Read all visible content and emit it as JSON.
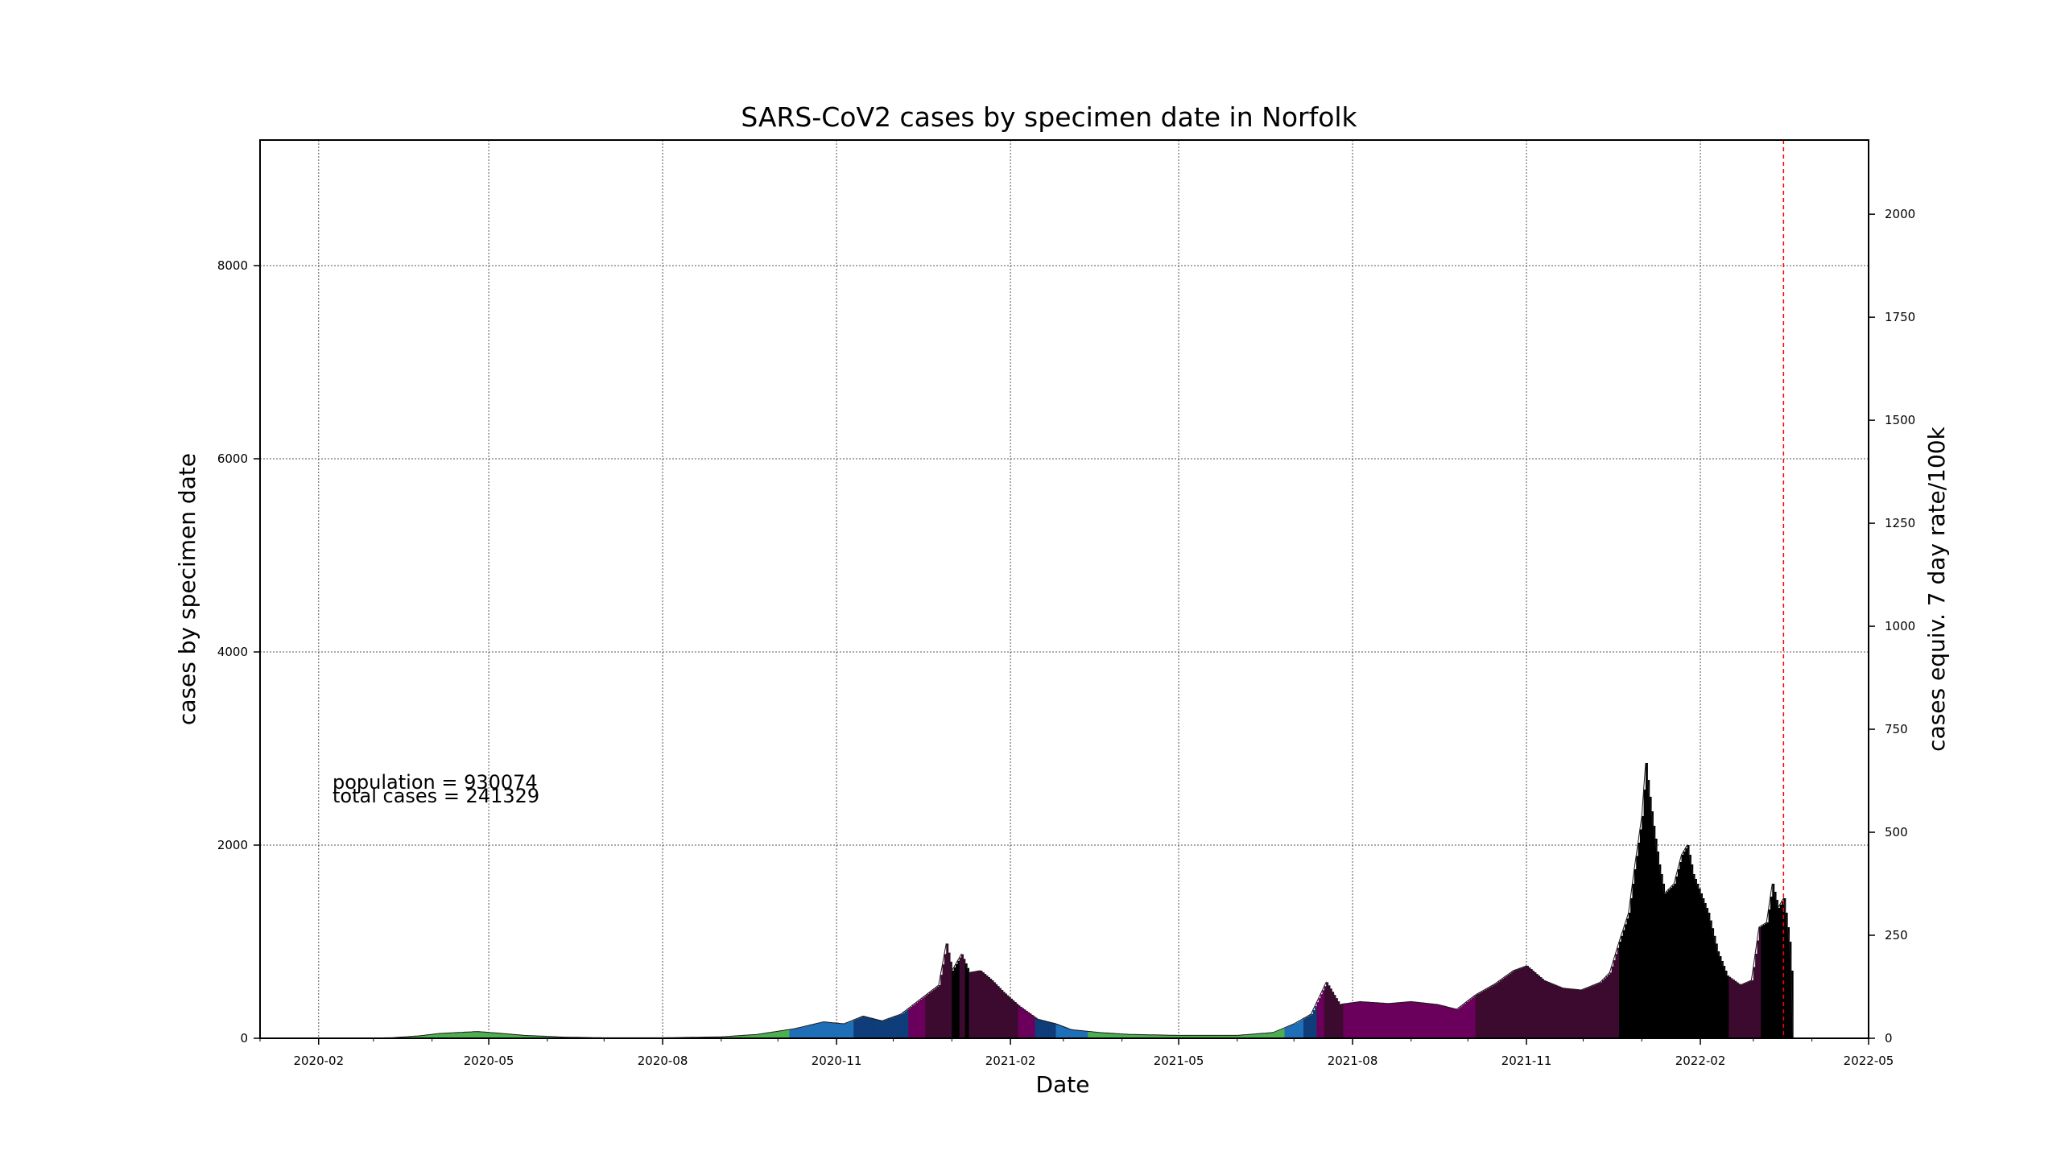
{
  "chart_data": {
    "type": "area",
    "title": "SARS-CoV2 cases by specimen date in Norfolk",
    "xlabel": "Date",
    "ylabel": "cases by specimen date",
    "ylabel_right": "cases equiv. 7 day rate/100k",
    "xlim": [
      "2020-01-01",
      "2022-05-01"
    ],
    "ylim": [
      0,
      9300
    ],
    "ylim_right": [
      0,
      2180
    ],
    "grid": true,
    "x_ticks": [
      "2020-02",
      "2020-05",
      "2020-08",
      "2020-11",
      "2021-02",
      "2021-05",
      "2021-08",
      "2021-11",
      "2022-02",
      "2022-05"
    ],
    "y_ticks": [
      0,
      2000,
      4000,
      6000,
      8000
    ],
    "y_ticks_right": [
      0,
      250,
      500,
      750,
      1000,
      1250,
      1500,
      1750,
      2000
    ],
    "vline_date": "2022-03-17",
    "vline_color": "#ff0000",
    "annotations": {
      "population": "population = 930074",
      "total_cases": "total cases = 241329"
    },
    "rate_colors": [
      "#4caf50",
      "#1e6fb8",
      "#0f3d7a",
      "#6b005c",
      "#3c0a2e",
      "#000000"
    ],
    "points": [
      [
        "2020-01-31",
        0
      ],
      [
        "2020-03-10",
        5
      ],
      [
        "2020-03-25",
        25
      ],
      [
        "2020-04-05",
        50
      ],
      [
        "2020-04-15",
        60
      ],
      [
        "2020-04-25",
        70
      ],
      [
        "2020-05-05",
        55
      ],
      [
        "2020-05-20",
        30
      ],
      [
        "2020-06-10",
        12
      ],
      [
        "2020-07-01",
        5
      ],
      [
        "2020-08-01",
        5
      ],
      [
        "2020-09-01",
        15
      ],
      [
        "2020-09-20",
        40
      ],
      [
        "2020-10-10",
        100
      ],
      [
        "2020-10-25",
        170
      ],
      [
        "2020-11-05",
        150
      ],
      [
        "2020-11-15",
        230
      ],
      [
        "2020-11-25",
        180
      ],
      [
        "2020-12-05",
        250
      ],
      [
        "2020-12-15",
        400
      ],
      [
        "2020-12-25",
        550
      ],
      [
        "2020-12-29",
        980
      ],
      [
        "2021-01-01",
        700
      ],
      [
        "2021-01-06",
        870
      ],
      [
        "2021-01-10",
        680
      ],
      [
        "2021-01-16",
        700
      ],
      [
        "2021-01-22",
        600
      ],
      [
        "2021-01-28",
        480
      ],
      [
        "2021-02-05",
        340
      ],
      [
        "2021-02-15",
        200
      ],
      [
        "2021-02-25",
        150
      ],
      [
        "2021-03-05",
        90
      ],
      [
        "2021-03-20",
        60
      ],
      [
        "2021-04-05",
        40
      ],
      [
        "2021-05-01",
        30
      ],
      [
        "2021-06-01",
        30
      ],
      [
        "2021-06-20",
        60
      ],
      [
        "2021-07-01",
        150
      ],
      [
        "2021-07-10",
        250
      ],
      [
        "2021-07-18",
        580
      ],
      [
        "2021-07-25",
        350
      ],
      [
        "2021-08-05",
        380
      ],
      [
        "2021-08-20",
        360
      ],
      [
        "2021-09-01",
        380
      ],
      [
        "2021-09-15",
        350
      ],
      [
        "2021-09-25",
        300
      ],
      [
        "2021-10-05",
        450
      ],
      [
        "2021-10-15",
        560
      ],
      [
        "2021-10-25",
        700
      ],
      [
        "2021-11-01",
        750
      ],
      [
        "2021-11-10",
        600
      ],
      [
        "2021-11-20",
        520
      ],
      [
        "2021-11-30",
        500
      ],
      [
        "2021-12-10",
        580
      ],
      [
        "2021-12-15",
        680
      ],
      [
        "2021-12-20",
        1000
      ],
      [
        "2021-12-25",
        1300
      ],
      [
        "2021-12-28",
        1750
      ],
      [
        "2022-01-01",
        2300
      ],
      [
        "2022-01-03",
        2850
      ],
      [
        "2022-01-05",
        2500
      ],
      [
        "2022-01-07",
        2200
      ],
      [
        "2022-01-10",
        1800
      ],
      [
        "2022-01-13",
        1500
      ],
      [
        "2022-01-18",
        1600
      ],
      [
        "2022-01-22",
        1900
      ],
      [
        "2022-01-25",
        2000
      ],
      [
        "2022-01-28",
        1700
      ],
      [
        "2022-02-01",
        1500
      ],
      [
        "2022-02-05",
        1300
      ],
      [
        "2022-02-10",
        900
      ],
      [
        "2022-02-15",
        650
      ],
      [
        "2022-02-22",
        550
      ],
      [
        "2022-02-28",
        600
      ],
      [
        "2022-03-04",
        1150
      ],
      [
        "2022-03-08",
        1200
      ],
      [
        "2022-03-11",
        1600
      ],
      [
        "2022-03-14",
        1350
      ],
      [
        "2022-03-17",
        1450
      ],
      [
        "2022-03-20",
        1000
      ],
      [
        "2022-03-21",
        700
      ],
      [
        "2022-03-22",
        0
      ]
    ]
  }
}
